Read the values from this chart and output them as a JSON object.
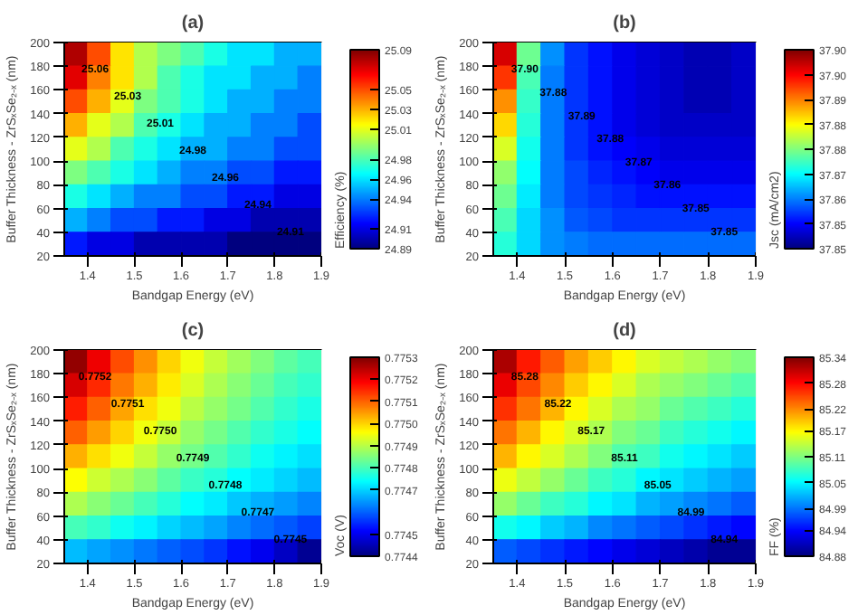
{
  "chart_data": [
    {
      "type": "heatmap",
      "title": "(a)",
      "xlabel": "Bandgap Energy (eV)",
      "ylabel": "Buffer Thickness - ZrSₓSe₂₋ₓ (nm)",
      "clabel": "Efficiency (%)",
      "xlim": [
        1.35,
        1.9
      ],
      "xticks": [
        1.4,
        1.5,
        1.6,
        1.7,
        1.8,
        1.9
      ],
      "ylim": [
        20,
        200
      ],
      "yticks": [
        20,
        40,
        60,
        80,
        100,
        120,
        140,
        160,
        180,
        200
      ],
      "clim": [
        24.89,
        25.09
      ],
      "cticks": [
        24.89,
        24.91,
        24.94,
        24.96,
        24.98,
        25.01,
        25.03,
        25.05,
        25.09
      ],
      "cells": [
        [
          25.08,
          25.05,
          25.02,
          25.0,
          24.99,
          24.98,
          24.97,
          24.96,
          24.96,
          24.95,
          24.95
        ],
        [
          25.07,
          25.04,
          25.02,
          25.0,
          24.98,
          24.97,
          24.96,
          24.96,
          24.95,
          24.95,
          24.94
        ],
        [
          25.05,
          25.03,
          25.01,
          24.99,
          24.98,
          24.97,
          24.96,
          24.95,
          24.95,
          24.94,
          24.94
        ],
        [
          25.03,
          25.01,
          25.0,
          24.98,
          24.97,
          24.96,
          24.95,
          24.95,
          24.94,
          24.94,
          24.93
        ],
        [
          25.01,
          25.0,
          24.98,
          24.97,
          24.96,
          24.95,
          24.95,
          24.94,
          24.94,
          24.93,
          24.93
        ],
        [
          24.99,
          24.98,
          24.97,
          24.96,
          24.95,
          24.94,
          24.94,
          24.93,
          24.93,
          24.92,
          24.92
        ],
        [
          24.97,
          24.96,
          24.95,
          24.94,
          24.94,
          24.93,
          24.93,
          24.92,
          24.92,
          24.91,
          24.91
        ],
        [
          24.95,
          24.94,
          24.93,
          24.93,
          24.92,
          24.92,
          24.91,
          24.91,
          24.9,
          24.9,
          24.9
        ],
        [
          24.92,
          24.91,
          24.91,
          24.9,
          24.9,
          24.9,
          24.9,
          24.89,
          24.89,
          24.89,
          24.89
        ]
      ],
      "annotations": [
        "25.06",
        "25.03",
        "25.01",
        "24.98",
        "24.96",
        "24.94",
        "24.91"
      ]
    },
    {
      "type": "heatmap",
      "title": "(b)",
      "xlabel": "Bandgap Energy (eV)",
      "ylabel": "Buffer Thickness - ZrSₓSe₂₋ₓ (nm)",
      "clabel": "Jsc (mA/cm2)",
      "xlim": [
        1.35,
        1.9
      ],
      "xticks": [
        1.4,
        1.5,
        1.6,
        1.7,
        1.8,
        1.9
      ],
      "ylim": [
        20,
        200
      ],
      "yticks": [
        20,
        40,
        60,
        80,
        100,
        120,
        140,
        160,
        180,
        200
      ],
      "clim": [
        37.847,
        37.903
      ],
      "cticks": [
        {
          "value": 37.847,
          "label": "37.85"
        },
        {
          "value": 37.854,
          "label": "37.85"
        },
        {
          "value": 37.861,
          "label": "37.86"
        },
        {
          "value": 37.868,
          "label": "37.87"
        },
        {
          "value": 37.875,
          "label": "37.88"
        },
        {
          "value": 37.882,
          "label": "37.88"
        },
        {
          "value": 37.889,
          "label": "37.89"
        },
        {
          "value": 37.896,
          "label": "37.90"
        },
        {
          "value": 37.903,
          "label": "37.90"
        }
      ],
      "cells": [
        [
          37.898,
          37.874,
          37.862,
          37.857,
          37.855,
          37.853,
          37.852,
          37.851,
          37.85,
          37.85,
          37.851
        ],
        [
          37.893,
          37.872,
          37.861,
          37.857,
          37.855,
          37.853,
          37.852,
          37.851,
          37.85,
          37.85,
          37.851
        ],
        [
          37.888,
          37.871,
          37.861,
          37.857,
          37.855,
          37.853,
          37.852,
          37.851,
          37.85,
          37.85,
          37.851
        ],
        [
          37.884,
          37.87,
          37.861,
          37.857,
          37.855,
          37.853,
          37.852,
          37.851,
          37.851,
          37.851,
          37.851
        ],
        [
          37.88,
          37.869,
          37.861,
          37.857,
          37.855,
          37.854,
          37.853,
          37.852,
          37.852,
          37.852,
          37.852
        ],
        [
          37.876,
          37.868,
          37.861,
          37.858,
          37.856,
          37.855,
          37.854,
          37.853,
          37.853,
          37.853,
          37.853
        ],
        [
          37.874,
          37.867,
          37.861,
          37.858,
          37.857,
          37.856,
          37.855,
          37.855,
          37.855,
          37.855,
          37.855
        ],
        [
          37.872,
          37.866,
          37.862,
          37.859,
          37.858,
          37.857,
          37.857,
          37.857,
          37.857,
          37.857,
          37.857
        ],
        [
          37.87,
          37.866,
          37.862,
          37.861,
          37.86,
          37.86,
          37.86,
          37.86,
          37.86,
          37.86,
          37.86
        ]
      ],
      "annotations": [
        "37.90",
        "37.88",
        "37.89",
        "37.88",
        "37.87",
        "37.86",
        "37.85",
        "37.85"
      ]
    },
    {
      "type": "heatmap",
      "title": "(c)",
      "xlabel": "Bandgap Energy (eV)",
      "ylabel": "Buffer Thickness - ZrSₓSe₂₋ₓ (nm)",
      "clabel": "Voc (V)",
      "xlim": [
        1.35,
        1.9
      ],
      "xticks": [
        1.4,
        1.5,
        1.6,
        1.7,
        1.8,
        1.9
      ],
      "ylim": [
        20,
        200
      ],
      "yticks": [
        20,
        40,
        60,
        80,
        100,
        120,
        140,
        160,
        180,
        200
      ],
      "clim": [
        0.7744,
        0.7753
      ],
      "cticks": [
        0.7744,
        0.7745,
        0.7747,
        0.7748,
        0.7749,
        {
          "value": 0.775,
          "label": "0.7750"
        },
        0.7751,
        0.7752,
        0.7753
      ],
      "cells": [
        [
          0.77528,
          0.7752,
          0.77512,
          0.77506,
          0.775,
          0.77495,
          0.77491,
          0.77488,
          0.77485,
          0.77482,
          0.7748
        ],
        [
          0.77522,
          0.77515,
          0.77508,
          0.77503,
          0.77498,
          0.77493,
          0.77489,
          0.77486,
          0.77483,
          0.7748,
          0.77478
        ],
        [
          0.77516,
          0.7751,
          0.77504,
          0.77499,
          0.77495,
          0.7749,
          0.77487,
          0.77484,
          0.77481,
          0.77478,
          0.77476
        ],
        [
          0.7751,
          0.77505,
          0.775,
          0.77495,
          0.77491,
          0.77487,
          0.77484,
          0.77481,
          0.77478,
          0.77476,
          0.77474
        ],
        [
          0.77503,
          0.77499,
          0.77495,
          0.77491,
          0.77487,
          0.77484,
          0.77481,
          0.77478,
          0.77475,
          0.77473,
          0.77471
        ],
        [
          0.77496,
          0.77492,
          0.77489,
          0.77486,
          0.77482,
          0.77479,
          0.77477,
          0.77474,
          0.77472,
          0.7747,
          0.77468
        ],
        [
          0.77489,
          0.77486,
          0.77483,
          0.7748,
          0.77477,
          0.77474,
          0.77472,
          0.77469,
          0.77467,
          0.77465,
          0.77463
        ],
        [
          0.7748,
          0.77478,
          0.77475,
          0.77473,
          0.7747,
          0.77468,
          0.77466,
          0.77463,
          0.77461,
          0.77459,
          0.77457
        ],
        [
          0.77468,
          0.77466,
          0.77464,
          0.77462,
          0.7746,
          0.77458,
          0.77456,
          0.77453,
          0.7745,
          0.77446,
          0.77442
        ]
      ],
      "annotations": [
        "0.7752",
        "0.7751",
        "0.7750",
        "0.7749",
        "0.7748",
        "0.7747",
        "0.7745"
      ]
    },
    {
      "type": "heatmap",
      "title": "(d)",
      "xlabel": "Bandgap Energy (eV)",
      "ylabel": "Buffer Thickness - ZrSₓSe₂₋ₓ (nm)",
      "clabel": "FF (%)",
      "xlim": [
        1.35,
        1.9
      ],
      "xticks": [
        1.4,
        1.5,
        1.6,
        1.7,
        1.8,
        1.9
      ],
      "ylim": [
        20,
        200
      ],
      "yticks": [
        20,
        40,
        60,
        80,
        100,
        120,
        140,
        160,
        180,
        200
      ],
      "clim": [
        84.88,
        85.34
      ],
      "cticks": [
        84.88,
        84.94,
        84.99,
        85.05,
        85.11,
        85.17,
        85.22,
        85.28,
        85.34
      ],
      "cells": [
        [
          85.32,
          85.27,
          85.24,
          85.21,
          85.19,
          85.17,
          85.15,
          85.14,
          85.13,
          85.12,
          85.11
        ],
        [
          85.29,
          85.25,
          85.22,
          85.19,
          85.17,
          85.15,
          85.13,
          85.12,
          85.11,
          85.1,
          85.09
        ],
        [
          85.26,
          85.23,
          85.2,
          85.17,
          85.15,
          85.13,
          85.12,
          85.1,
          85.09,
          85.08,
          85.07
        ],
        [
          85.23,
          85.2,
          85.17,
          85.15,
          85.13,
          85.11,
          85.1,
          85.08,
          85.07,
          85.06,
          85.05
        ],
        [
          85.2,
          85.17,
          85.15,
          85.13,
          85.11,
          85.09,
          85.08,
          85.06,
          85.05,
          85.04,
          85.03
        ],
        [
          85.16,
          85.14,
          85.12,
          85.1,
          85.08,
          85.07,
          85.05,
          85.04,
          85.03,
          85.02,
          85.01
        ],
        [
          85.12,
          85.1,
          85.08,
          85.07,
          85.05,
          85.04,
          85.02,
          85.01,
          85.0,
          84.99,
          84.98
        ],
        [
          85.06,
          85.05,
          85.03,
          85.02,
          85.0,
          84.99,
          84.98,
          84.97,
          84.96,
          84.95,
          84.94
        ],
        [
          84.98,
          84.97,
          84.96,
          84.95,
          84.94,
          84.93,
          84.92,
          84.91,
          84.9,
          84.89,
          84.89
        ]
      ],
      "annotations": [
        "85.28",
        "85.22",
        "85.17",
        "85.11",
        "85.05",
        "84.99",
        "84.94"
      ]
    }
  ]
}
